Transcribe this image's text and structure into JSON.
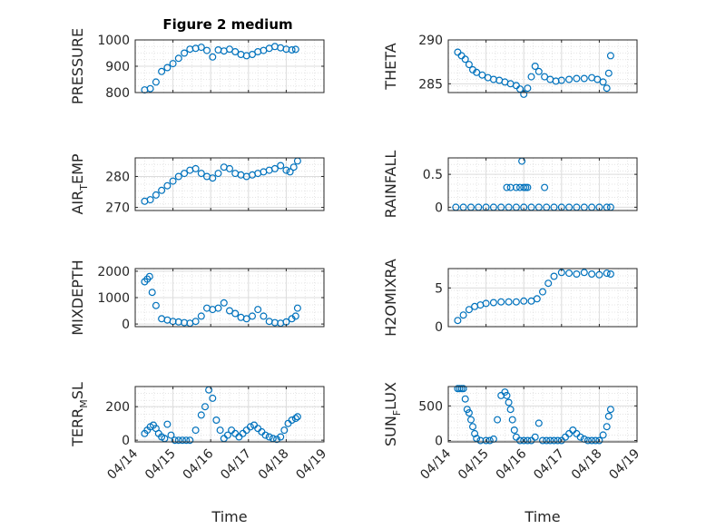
{
  "figure": {
    "title": "Figure 2 medium"
  },
  "colors": {
    "marker": "#0072BD",
    "grid": "#dcdcdc",
    "axis": "#262626",
    "background": "#ffffff"
  },
  "chart_data": [
    {
      "id": "pressure",
      "type": "scatter",
      "marker": "open-circle",
      "title": "Figure 2 medium",
      "ylabel": "PRESSURE",
      "ylabel_main": "PRESSURE",
      "ylabel_sub": "",
      "ylabel_tail": "",
      "xlabel": "",
      "show_x_ticks": false,
      "ylim": [
        800,
        1000
      ],
      "yticks": [
        800,
        900,
        1000
      ],
      "grid": true,
      "minor_grid": true,
      "x": [
        0.25,
        0.4,
        0.55,
        0.7,
        0.85,
        1.0,
        1.15,
        1.3,
        1.45,
        1.6,
        1.75,
        1.9,
        2.05,
        2.2,
        2.35,
        2.5,
        2.65,
        2.8,
        2.95,
        3.1,
        3.25,
        3.4,
        3.55,
        3.7,
        3.85,
        4.0,
        4.15,
        4.25
      ],
      "y": [
        810,
        815,
        840,
        880,
        895,
        910,
        930,
        950,
        965,
        968,
        972,
        960,
        935,
        962,
        958,
        965,
        955,
        945,
        940,
        945,
        955,
        960,
        968,
        975,
        970,
        965,
        962,
        964
      ]
    },
    {
      "id": "theta",
      "type": "scatter",
      "marker": "open-circle",
      "ylabel": "THETA",
      "ylabel_main": "THETA",
      "ylabel_sub": "",
      "ylabel_tail": "",
      "xlabel": "",
      "show_x_ticks": false,
      "ylim": [
        284,
        290
      ],
      "yticks": [
        285,
        290
      ],
      "grid": true,
      "minor_grid": true,
      "x": [
        0.25,
        0.35,
        0.45,
        0.55,
        0.65,
        0.75,
        0.9,
        1.05,
        1.2,
        1.35,
        1.5,
        1.65,
        1.8,
        1.9,
        2.0,
        2.1,
        2.2,
        2.3,
        2.4,
        2.55,
        2.7,
        2.85,
        3.0,
        3.2,
        3.4,
        3.6,
        3.8,
        3.95,
        4.1,
        4.2,
        4.25,
        4.3
      ],
      "y": [
        288.6,
        288.2,
        287.8,
        287.2,
        286.6,
        286.3,
        286.0,
        285.7,
        285.5,
        285.4,
        285.2,
        285.0,
        284.8,
        284.4,
        283.8,
        284.5,
        285.8,
        287.0,
        286.4,
        285.8,
        285.5,
        285.3,
        285.4,
        285.5,
        285.6,
        285.6,
        285.7,
        285.5,
        285.2,
        284.5,
        286.2,
        288.2
      ]
    },
    {
      "id": "air_temp",
      "type": "scatter",
      "marker": "open-circle",
      "ylabel": "AIR_TEMP",
      "ylabel_main": "AIR",
      "ylabel_sub": "T",
      "ylabel_tail": "EMP",
      "xlabel": "",
      "show_x_ticks": false,
      "ylim": [
        269,
        286
      ],
      "yticks": [
        270,
        280
      ],
      "grid": true,
      "minor_grid": true,
      "x": [
        0.25,
        0.4,
        0.55,
        0.7,
        0.85,
        1.0,
        1.15,
        1.3,
        1.45,
        1.6,
        1.75,
        1.9,
        2.05,
        2.2,
        2.35,
        2.5,
        2.65,
        2.8,
        2.95,
        3.1,
        3.25,
        3.4,
        3.55,
        3.7,
        3.85,
        4.0,
        4.1,
        4.2,
        4.3
      ],
      "y": [
        272,
        272.5,
        274,
        275.5,
        277,
        278.5,
        280,
        281,
        282,
        282.5,
        281,
        280,
        279.5,
        281,
        283,
        282.5,
        281,
        280.5,
        280,
        280.5,
        281,
        281.5,
        282,
        282.5,
        283.5,
        282,
        281.5,
        283,
        285
      ]
    },
    {
      "id": "rainfall",
      "type": "scatter",
      "marker": "open-circle",
      "ylabel": "RAINFALL",
      "ylabel_main": "RAINFALL",
      "ylabel_sub": "",
      "ylabel_tail": "",
      "xlabel": "",
      "show_x_ticks": false,
      "ylim": [
        -0.05,
        0.75
      ],
      "yticks": [
        0,
        0.5
      ],
      "grid": true,
      "minor_grid": true,
      "x": [
        0.2,
        0.4,
        0.6,
        0.8,
        1.0,
        1.2,
        1.4,
        1.6,
        1.8,
        2.0,
        2.2,
        2.4,
        2.6,
        2.8,
        3.0,
        3.2,
        3.4,
        3.6,
        3.8,
        4.0,
        4.2,
        4.3,
        1.55,
        1.65,
        1.8,
        1.9,
        2.0,
        2.05,
        2.1,
        2.55,
        1.95
      ],
      "y": [
        0,
        0,
        0,
        0,
        0,
        0,
        0,
        0,
        0,
        0,
        0,
        0,
        0,
        0,
        0,
        0,
        0,
        0,
        0,
        0,
        0,
        0,
        0.3,
        0.3,
        0.3,
        0.3,
        0.3,
        0.3,
        0.3,
        0.3,
        0.7
      ]
    },
    {
      "id": "mixdepth",
      "type": "scatter",
      "marker": "open-circle",
      "ylabel": "MIXDEPTH",
      "ylabel_main": "MIXDEPTH",
      "ylabel_sub": "",
      "ylabel_tail": "",
      "xlabel": "",
      "show_x_ticks": false,
      "ylim": [
        -100,
        2100
      ],
      "yticks": [
        0,
        1000,
        2000
      ],
      "grid": true,
      "minor_grid": true,
      "x": [
        0.25,
        0.32,
        0.38,
        0.45,
        0.55,
        0.7,
        0.85,
        1.0,
        1.15,
        1.3,
        1.45,
        1.6,
        1.75,
        1.9,
        2.05,
        2.2,
        2.35,
        2.5,
        2.65,
        2.8,
        2.95,
        3.1,
        3.25,
        3.4,
        3.55,
        3.7,
        3.85,
        4.0,
        4.15,
        4.25,
        4.3
      ],
      "y": [
        1600,
        1700,
        1800,
        1200,
        700,
        200,
        150,
        100,
        80,
        50,
        30,
        100,
        300,
        600,
        550,
        600,
        800,
        500,
        400,
        250,
        200,
        300,
        550,
        300,
        100,
        50,
        30,
        80,
        200,
        300,
        600
      ]
    },
    {
      "id": "h2omixra",
      "type": "scatter",
      "marker": "open-circle",
      "ylabel": "H2OMIXRA",
      "ylabel_main": "H2OMIXRA",
      "ylabel_sub": "",
      "ylabel_tail": "",
      "xlabel": "",
      "show_x_ticks": false,
      "ylim": [
        0,
        7.5
      ],
      "yticks": [
        0,
        5
      ],
      "grid": true,
      "minor_grid": true,
      "x": [
        0.25,
        0.4,
        0.55,
        0.7,
        0.85,
        1.0,
        1.2,
        1.4,
        1.6,
        1.8,
        2.0,
        2.2,
        2.35,
        2.5,
        2.65,
        2.8,
        3.0,
        3.2,
        3.4,
        3.6,
        3.8,
        4.0,
        4.2,
        4.3
      ],
      "y": [
        0.8,
        1.5,
        2.2,
        2.6,
        2.8,
        3.0,
        3.1,
        3.2,
        3.2,
        3.2,
        3.3,
        3.3,
        3.6,
        4.5,
        5.6,
        6.5,
        7.0,
        6.9,
        6.8,
        7.0,
        6.8,
        6.7,
        6.9,
        6.8
      ]
    },
    {
      "id": "terr_msl",
      "type": "scatter",
      "marker": "open-circle",
      "ylabel": "TERR_MSL",
      "ylabel_main": "TERR",
      "ylabel_sub": "M",
      "ylabel_tail": "SL",
      "xlabel": "Time",
      "show_x_ticks": true,
      "xtick_labels": [
        "04/14",
        "04/15",
        "04/16",
        "04/17",
        "04/18",
        "04/19"
      ],
      "ylim": [
        -10,
        320
      ],
      "yticks": [
        0,
        200
      ],
      "grid": true,
      "minor_grid": true,
      "x": [
        0.25,
        0.32,
        0.4,
        0.48,
        0.55,
        0.62,
        0.7,
        0.78,
        0.85,
        0.95,
        1.05,
        1.15,
        1.25,
        1.35,
        1.45,
        1.6,
        1.75,
        1.85,
        1.95,
        2.05,
        2.15,
        2.25,
        2.35,
        2.45,
        2.55,
        2.65,
        2.75,
        2.85,
        2.95,
        3.05,
        3.15,
        3.25,
        3.35,
        3.45,
        3.55,
        3.65,
        3.75,
        3.85,
        3.95,
        4.05,
        4.15,
        4.25,
        4.3
      ],
      "y": [
        40,
        60,
        80,
        90,
        70,
        40,
        20,
        10,
        95,
        30,
        0,
        0,
        0,
        0,
        0,
        60,
        150,
        200,
        300,
        250,
        120,
        60,
        10,
        30,
        60,
        40,
        20,
        40,
        60,
        80,
        90,
        70,
        50,
        30,
        20,
        10,
        5,
        20,
        60,
        100,
        120,
        130,
        140
      ]
    },
    {
      "id": "sun_flux",
      "type": "scatter",
      "marker": "open-circle",
      "ylabel": "SUN_FLUX",
      "ylabel_main": "SUN",
      "ylabel_sub": "F",
      "ylabel_tail": "LUX",
      "xlabel": "Time",
      "show_x_ticks": true,
      "xtick_labels": [
        "04/14",
        "04/15",
        "04/16",
        "04/17",
        "04/18",
        "04/19"
      ],
      "ylim": [
        -20,
        780
      ],
      "yticks": [
        0,
        500
      ],
      "grid": true,
      "minor_grid": true,
      "x": [
        0.25,
        0.3,
        0.35,
        0.4,
        0.45,
        0.5,
        0.55,
        0.6,
        0.65,
        0.7,
        0.75,
        0.85,
        1.0,
        1.1,
        1.2,
        1.3,
        1.4,
        1.5,
        1.55,
        1.6,
        1.65,
        1.7,
        1.75,
        1.8,
        1.9,
        2.0,
        2.1,
        2.2,
        2.3,
        2.4,
        2.5,
        2.6,
        2.7,
        2.8,
        2.9,
        3.0,
        3.1,
        3.2,
        3.3,
        3.4,
        3.5,
        3.6,
        3.7,
        3.8,
        3.9,
        4.0,
        4.1,
        4.2,
        4.25,
        4.3
      ],
      "y": [
        750,
        750,
        750,
        750,
        600,
        450,
        400,
        300,
        200,
        100,
        30,
        0,
        0,
        0,
        20,
        300,
        650,
        700,
        650,
        550,
        450,
        300,
        150,
        50,
        0,
        0,
        0,
        0,
        50,
        250,
        0,
        0,
        0,
        0,
        0,
        0,
        50,
        100,
        150,
        100,
        50,
        20,
        0,
        0,
        0,
        0,
        80,
        200,
        350,
        450
      ]
    }
  ]
}
